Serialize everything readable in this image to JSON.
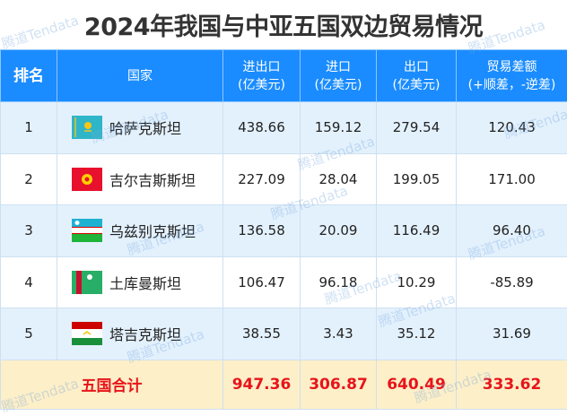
{
  "title": "2024年我国与中亚五国双边贸易情况",
  "watermark": "腾道Tendata",
  "headers": {
    "rank": "排名",
    "country": "国家",
    "total": [
      "进出口",
      "(亿美元)"
    ],
    "import": [
      "进口",
      "(亿美元)"
    ],
    "export": [
      "出口",
      "(亿美元)"
    ],
    "balance": [
      "贸易差额",
      "(+顺差，-逆差)"
    ]
  },
  "rows": [
    {
      "rank": "1",
      "country": "哈萨克斯坦",
      "flag": "kazakhstan-flag",
      "total": "438.66",
      "import": "159.12",
      "export": "279.54",
      "balance": "120.43"
    },
    {
      "rank": "2",
      "country": "吉尔吉斯斯坦",
      "flag": "kyrgyzstan-flag",
      "total": "227.09",
      "import": "28.04",
      "export": "199.05",
      "balance": "171.00"
    },
    {
      "rank": "3",
      "country": "乌兹别克斯坦",
      "flag": "uzbekistan-flag",
      "total": "136.58",
      "import": "20.09",
      "export": "116.49",
      "balance": "96.40"
    },
    {
      "rank": "4",
      "country": "土库曼斯坦",
      "flag": "turkmenistan-flag",
      "total": "106.47",
      "import": "96.18",
      "export": "10.29",
      "balance": "-85.89"
    },
    {
      "rank": "5",
      "country": "塔吉克斯坦",
      "flag": "tajikistan-flag",
      "total": "38.55",
      "import": "3.43",
      "export": "35.12",
      "balance": "31.69"
    }
  ],
  "total": {
    "label": "五国合计",
    "total": "947.36",
    "import": "306.87",
    "export": "640.49",
    "balance": "333.62"
  },
  "colors": {
    "header": "#1a8cff",
    "row_alt": "#e3f1fd",
    "total_bg": "#fdefc8",
    "total_text": "#e8141a"
  }
}
